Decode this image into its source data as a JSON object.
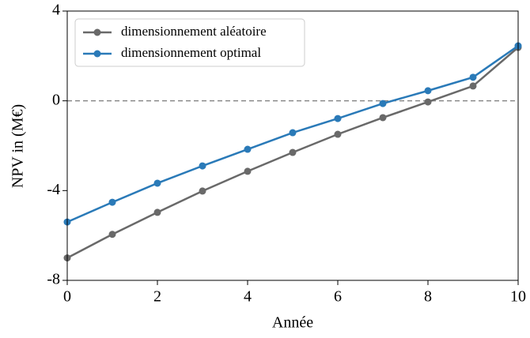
{
  "chart_data": {
    "type": "line",
    "xlabel": "Année",
    "ylabel": "NPV in (M€)",
    "x": [
      0,
      1,
      2,
      3,
      4,
      5,
      6,
      7,
      8,
      9,
      10
    ],
    "series": [
      {
        "name": "dimensionnement aléatoire",
        "color": "#696969",
        "values": [
          -7.0,
          -5.95,
          -4.97,
          -4.02,
          -3.14,
          -2.3,
          -1.49,
          -0.75,
          -0.05,
          0.66,
          2.38
        ]
      },
      {
        "name": "dimensionnement optimal",
        "color": "#2a7ab8",
        "values": [
          -5.4,
          -4.52,
          -3.67,
          -2.9,
          -2.16,
          -1.42,
          -0.79,
          -0.12,
          0.45,
          1.05,
          2.45
        ]
      }
    ],
    "xlim": [
      0,
      10
    ],
    "xticks": [
      0,
      2,
      4,
      6,
      8,
      10
    ],
    "ylim": [
      -8,
      4
    ],
    "yticks": [
      -8,
      -4,
      0,
      4
    ],
    "reference_line": 0,
    "legend": "upper left",
    "grid": false
  }
}
